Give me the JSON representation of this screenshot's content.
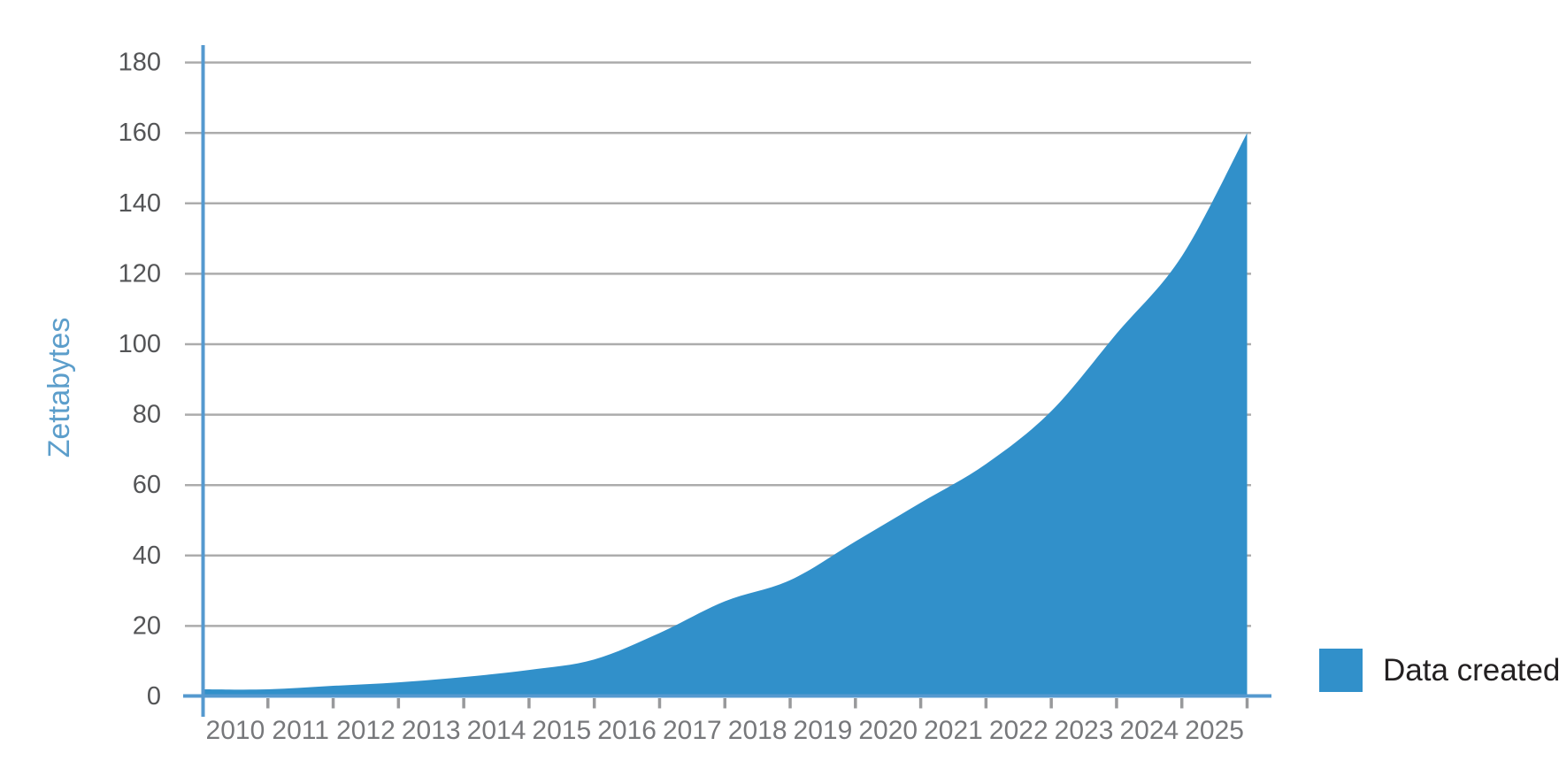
{
  "page": {
    "background": "#ffffff"
  },
  "chart_data": {
    "type": "area",
    "title": "",
    "x": [
      2010,
      2011,
      2012,
      2013,
      2014,
      2015,
      2016,
      2017,
      2018,
      2019,
      2020,
      2021,
      2022,
      2023,
      2024,
      2025
    ],
    "series": [
      {
        "name": "Data created",
        "color": "#3190CA",
        "values": [
          2,
          3,
          4,
          5.5,
          7.5,
          10.5,
          18,
          27,
          33,
          44,
          55,
          66,
          81,
          103,
          125,
          160
        ]
      }
    ],
    "xlabel": "",
    "ylabel": "Zettabytes",
    "ylim": [
      0,
      180
    ],
    "yticks": [
      0,
      20,
      40,
      60,
      80,
      100,
      120,
      140,
      160,
      180
    ],
    "grid": "horizontal",
    "legend_position": "bottom-right-outside",
    "colors": {
      "area_fill": "#3190CA",
      "axis_line": "#5599CF",
      "gridline": "#ACACAC",
      "tick_mark": "#98999B",
      "ytick_label": "#545557",
      "xtick_label": "#77787B",
      "ylabel_text": "#5C9ECB",
      "legend_text": "#232021"
    }
  }
}
